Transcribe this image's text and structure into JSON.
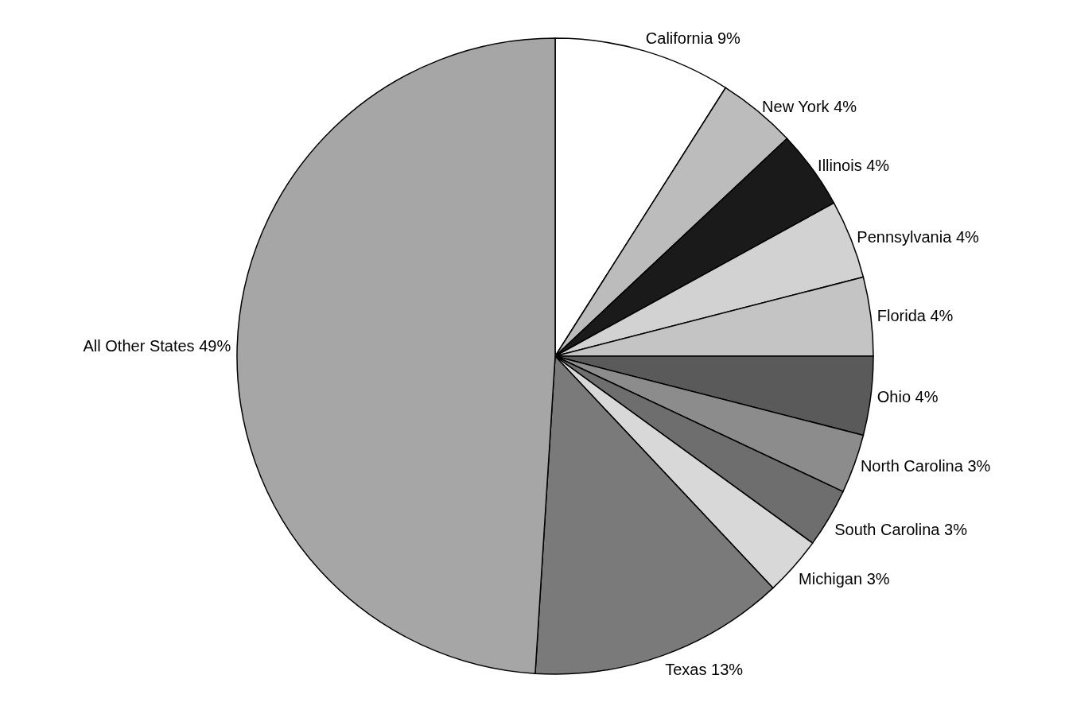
{
  "chart_data": {
    "type": "pie",
    "categories": [
      "California",
      "New York",
      "Illinois",
      "Pennsylvania",
      "Florida",
      "Ohio",
      "North Carolina",
      "South Carolina",
      "Michigan",
      "Texas",
      "All Other States"
    ],
    "values": [
      9,
      4,
      4,
      4,
      4,
      4,
      3,
      3,
      3,
      13,
      49
    ],
    "colors": [
      "#ffffff",
      "#bcbcbc",
      "#1a1a1a",
      "#d2d2d2",
      "#c4c4c4",
      "#5a5a5a",
      "#8c8c8c",
      "#6e6e6e",
      "#d8d8d8",
      "#7a7a7a",
      "#a6a6a6"
    ],
    "value_labels": [
      "9%",
      "4%",
      "4%",
      "4%",
      "4%",
      "4%",
      "3%",
      "3%",
      "3%",
      "13%",
      "49%"
    ]
  }
}
